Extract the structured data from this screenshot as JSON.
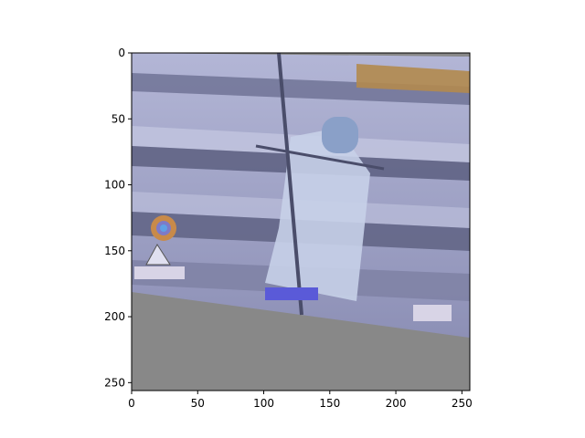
{
  "image": {
    "description_colors": {
      "sky": "#9a9dc4",
      "stadium_light": "#b7bbd8",
      "stadium_dark": "#5e6180",
      "coat": "#c6d0e8",
      "padding": "#888888",
      "scoreboard_orange": "#b28a4e",
      "target_ring": "#c88a4a",
      "target_center": "#5fa0e6"
    }
  },
  "axes": {
    "x_ticks": [
      0,
      50,
      100,
      150,
      200,
      250
    ],
    "y_ticks": [
      0,
      50,
      100,
      150,
      200,
      250
    ],
    "x_range": [
      0,
      256
    ],
    "y_range": [
      256,
      0
    ]
  }
}
